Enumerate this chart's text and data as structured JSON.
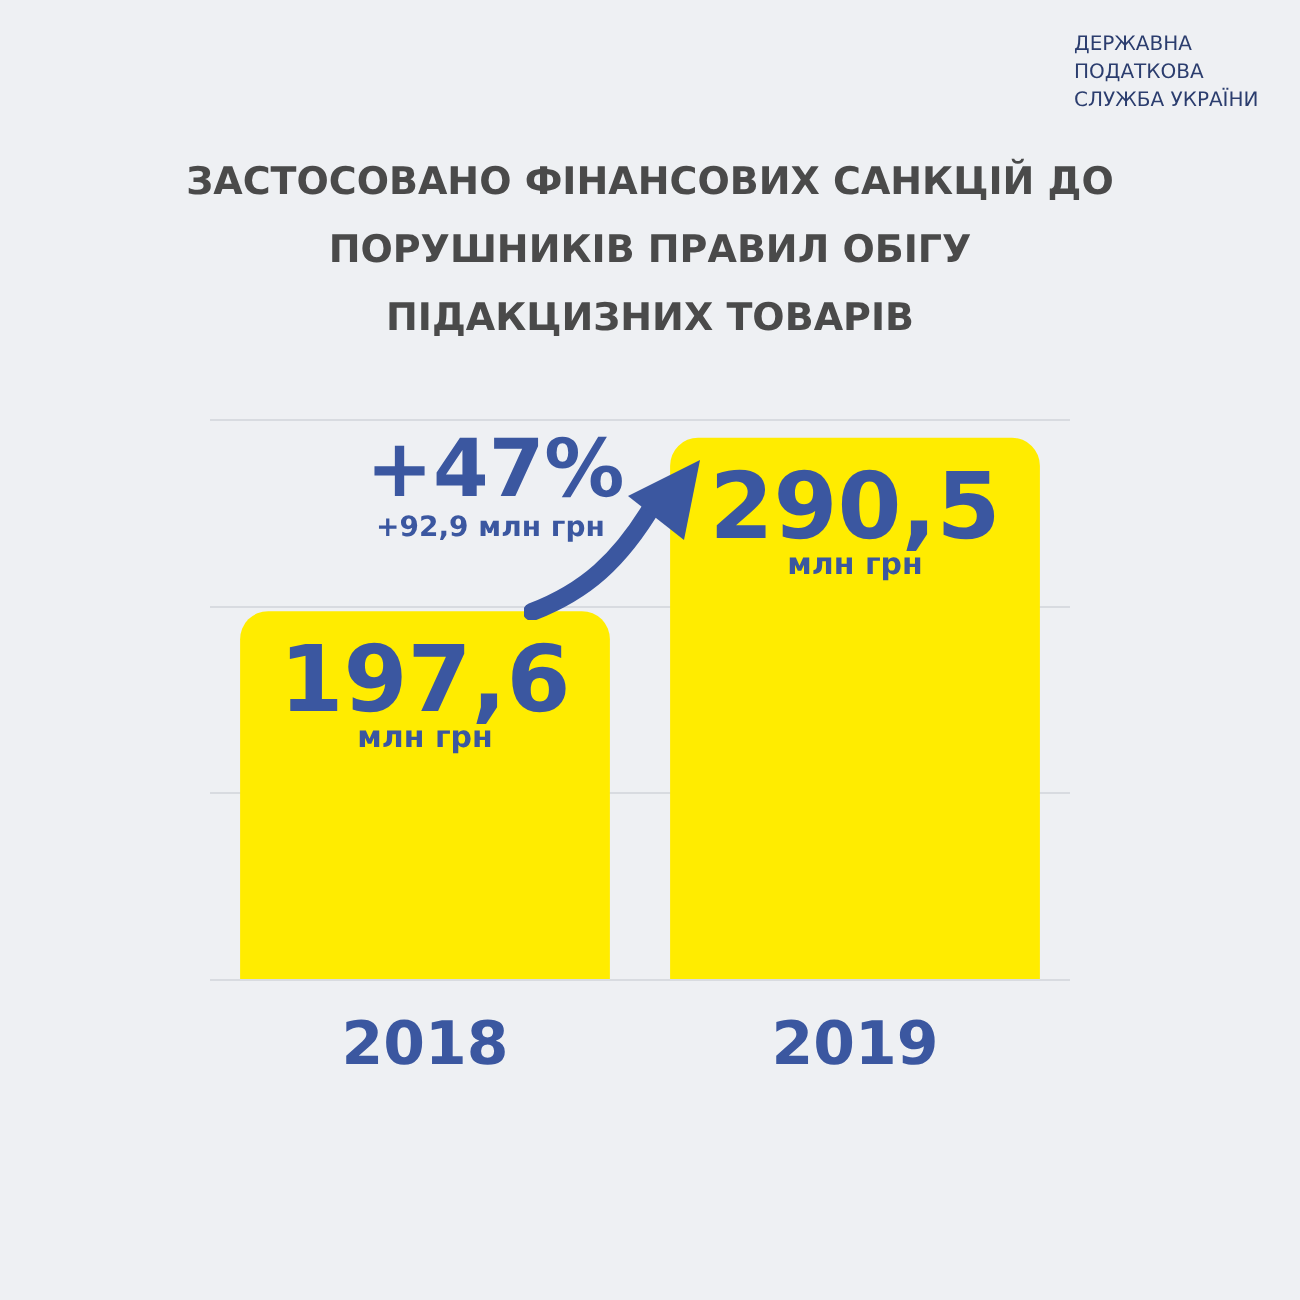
{
  "chart_data": {
    "type": "bar",
    "title": "ЗАСТОСОВАНО ФІНАНСОВИХ САНКЦІЙ ДО ПОРУШНИКІВ ПРАВИЛ ОБІГУ ПІДАКЦИЗНИХ ТОВАРІВ",
    "categories": [
      "2018",
      "2019"
    ],
    "values": [
      197.6,
      290.5
    ],
    "color": "#ffec00",
    "value_labels": [
      "197,6\nмлн грн",
      "290,5\nмлн грн"
    ],
    "ylim": [
      0,
      300
    ],
    "yticks": [
      {
        "value": 0,
        "label": null
      },
      {
        "value": 100,
        "label": null
      },
      {
        "value": 200,
        "label": null
      },
      {
        "value": 300,
        "label": null
      }
    ],
    "grid": "y",
    "tick_labels": "x",
    "legend": false,
    "annotations": [
      "+47%",
      "+92,9 млн грн",
      "ДЕРЖАВНА\nПОДАТКОВА\nСЛУЖБА УКРАЇНИ"
    ]
  }
}
